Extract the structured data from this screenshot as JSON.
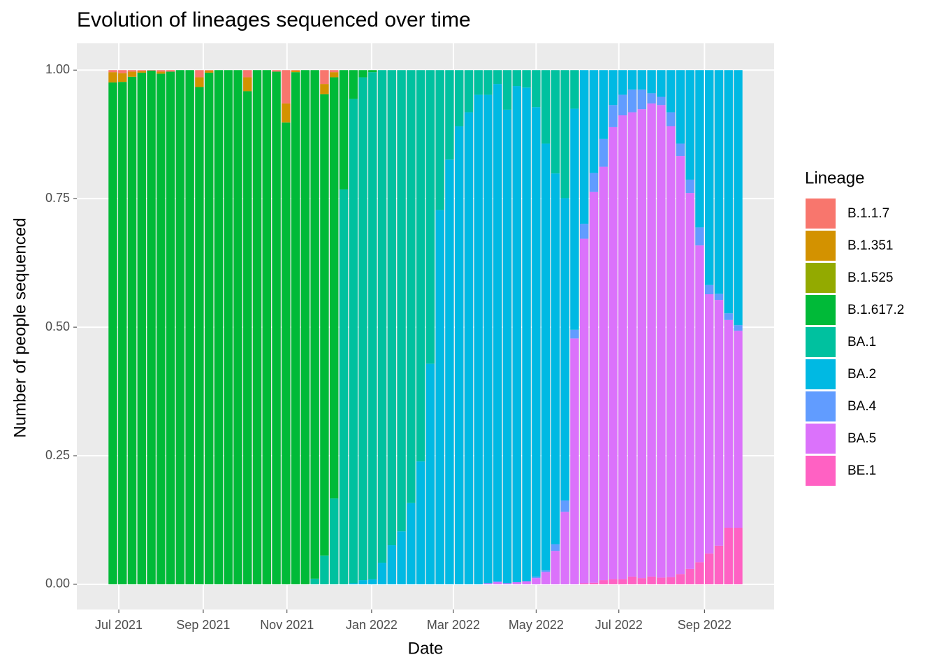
{
  "chart_data": {
    "type": "stacked_bar",
    "title": "Evolution of lineages sequenced over time",
    "x_label": "Date",
    "y_label": "Number of people sequenced",
    "legend_title": "Lineage",
    "legend_position": "right",
    "grid": true,
    "categories": [
      null,
      null,
      null,
      null,
      null,
      null,
      null,
      null,
      null,
      null,
      null,
      null,
      null,
      null,
      null,
      null,
      null,
      null,
      null,
      null,
      null,
      null,
      null,
      null,
      null,
      null,
      null,
      null,
      null,
      null,
      null,
      null,
      null,
      null,
      null,
      null,
      null,
      null,
      null,
      null,
      null,
      null,
      null,
      null,
      null,
      null,
      null,
      null,
      null,
      null,
      null,
      null,
      null,
      null,
      null,
      null,
      null,
      null,
      null,
      null,
      null,
      null,
      null,
      null,
      null,
      null
    ],
    "xlim": [
      -3.74,
      68.74
    ],
    "xticks": [
      {
        "value": 0.62,
        "label": "Jul 2021"
      },
      {
        "value": 9.4,
        "label": "Sep 2021"
      },
      {
        "value": 18.1,
        "label": "Nov 2021"
      },
      {
        "value": 26.9,
        "label": "Jan 2022"
      },
      {
        "value": 35.4,
        "label": "Mar 2022"
      },
      {
        "value": 44.0,
        "label": "May 2022"
      },
      {
        "value": 52.6,
        "label": "Jul 2022"
      },
      {
        "value": 61.5,
        "label": "Sep 2022"
      }
    ],
    "ylim": [
      -0.049,
      1.052
    ],
    "yticks": [
      {
        "value": 0,
        "label": "0.00"
      },
      {
        "value": 0.25,
        "label": "0.25"
      },
      {
        "value": 0.5,
        "label": "0.50"
      },
      {
        "value": 0.75,
        "label": "0.75"
      },
      {
        "value": 1,
        "label": "1.00"
      }
    ],
    "series": [
      {
        "name": "B.1.1.7",
        "color": "#F8766D",
        "values": [
          0.004,
          0.006,
          0.003,
          0.002,
          0.001,
          0.003,
          0.003,
          0,
          0,
          0.014,
          0.001,
          0,
          0,
          0,
          0.014,
          0,
          0,
          0.003,
          0.065,
          0.001,
          0,
          0,
          0.027,
          0.004,
          0,
          0,
          0,
          0,
          0,
          0,
          0,
          0,
          0,
          0,
          0,
          0,
          0,
          0,
          0,
          0,
          0,
          0,
          0,
          0,
          0,
          0,
          0,
          0,
          0,
          0,
          0,
          0,
          0,
          0,
          0,
          0,
          0,
          0,
          0,
          0,
          0,
          0,
          0,
          0,
          0,
          0
        ]
      },
      {
        "name": "B.1.351",
        "color": "#D39200",
        "values": [
          0.02,
          0.017,
          0.01,
          0.003,
          0,
          0.004,
          0,
          0,
          0,
          0.019,
          0.004,
          0,
          0,
          0,
          0.027,
          0,
          0,
          0,
          0.037,
          0.003,
          0,
          0,
          0.02,
          0.01,
          0,
          0,
          0,
          0,
          0,
          0,
          0,
          0,
          0,
          0,
          0,
          0,
          0,
          0,
          0,
          0,
          0,
          0,
          0,
          0,
          0,
          0,
          0,
          0,
          0,
          0,
          0,
          0,
          0,
          0,
          0,
          0,
          0,
          0,
          0,
          0,
          0,
          0,
          0,
          0,
          0,
          0
        ]
      },
      {
        "name": "B.1.525",
        "color": "#93AA00",
        "values": [
          0,
          0,
          0,
          0,
          0,
          0,
          0,
          0,
          0,
          0,
          0,
          0,
          0,
          0,
          0,
          0,
          0,
          0,
          0,
          0,
          0,
          0,
          0,
          0,
          0,
          0,
          0,
          0,
          0,
          0,
          0,
          0,
          0,
          0,
          0,
          0,
          0,
          0,
          0,
          0,
          0,
          0,
          0,
          0,
          0,
          0,
          0,
          0,
          0,
          0,
          0,
          0,
          0,
          0,
          0,
          0,
          0,
          0,
          0,
          0,
          0,
          0,
          0,
          0,
          0,
          0
        ]
      },
      {
        "name": "B.1.617.2",
        "color": "#00BA38",
        "values": [
          0.976,
          0.977,
          0.987,
          0.995,
          0.999,
          0.993,
          0.997,
          1,
          1,
          0.967,
          0.995,
          1,
          1,
          1,
          0.959,
          1,
          1,
          0.997,
          0.898,
          0.996,
          1,
          0.989,
          0.897,
          0.819,
          0.232,
          0.056,
          0.014,
          0.004,
          0,
          0,
          0,
          0,
          0,
          0,
          0,
          0,
          0,
          0,
          0,
          0,
          0,
          0,
          0,
          0,
          0,
          0,
          0,
          0,
          0,
          0,
          0,
          0,
          0,
          0,
          0,
          0,
          0,
          0,
          0,
          0,
          0,
          0,
          0,
          0,
          0,
          0
        ]
      },
      {
        "name": "BA.1",
        "color": "#00C19F",
        "values": [
          0,
          0,
          0,
          0,
          0,
          0,
          0,
          0,
          0,
          0,
          0,
          0,
          0,
          0,
          0,
          0,
          0,
          0,
          0,
          0,
          0,
          0.011,
          0.056,
          0.167,
          0.768,
          0.942,
          0.978,
          0.986,
          0.958,
          0.924,
          0.897,
          0.842,
          0.761,
          0.571,
          0.272,
          0.174,
          0.109,
          0.082,
          0.048,
          0.048,
          0.027,
          0.077,
          0.031,
          0.034,
          0.072,
          0.143,
          0.201,
          0.249,
          0.075,
          0,
          0,
          0,
          0,
          0,
          0,
          0,
          0,
          0,
          0,
          0,
          0,
          0,
          0,
          0,
          0,
          0
        ]
      },
      {
        "name": "BA.2",
        "color": "#00B9E3",
        "values": [
          0,
          0,
          0,
          0,
          0,
          0,
          0,
          0,
          0,
          0,
          0,
          0,
          0,
          0,
          0,
          0,
          0,
          0,
          0,
          0,
          0,
          0,
          0,
          0,
          0,
          0.002,
          0.008,
          0.01,
          0.042,
          0.076,
          0.103,
          0.158,
          0.239,
          0.429,
          0.728,
          0.826,
          0.891,
          0.918,
          0.952,
          0.95,
          0.967,
          0.921,
          0.965,
          0.96,
          0.913,
          0.83,
          0.721,
          0.588,
          0.43,
          0.299,
          0.2,
          0.134,
          0.068,
          0.048,
          0.038,
          0.038,
          0.045,
          0.052,
          0.082,
          0.143,
          0.213,
          0.306,
          0.418,
          0.435,
          0.473,
          0.496
        ]
      },
      {
        "name": "BA.4",
        "color": "#619CFF",
        "values": [
          0,
          0,
          0,
          0,
          0,
          0,
          0,
          0,
          0,
          0,
          0,
          0,
          0,
          0,
          0,
          0,
          0,
          0,
          0,
          0,
          0,
          0,
          0,
          0,
          0,
          0,
          0,
          0,
          0,
          0,
          0,
          0,
          0,
          0,
          0,
          0,
          0,
          0,
          0,
          0,
          0.002,
          0,
          0,
          0,
          0.003,
          0.003,
          0.013,
          0.022,
          0.017,
          0.029,
          0.037,
          0.054,
          0.043,
          0.04,
          0.044,
          0.038,
          0.02,
          0.016,
          0.027,
          0.024,
          0.026,
          0.035,
          0.018,
          0.012,
          0.013,
          0.011
        ]
      },
      {
        "name": "BA.5",
        "color": "#DB72FB",
        "values": [
          0,
          0,
          0,
          0,
          0,
          0,
          0,
          0,
          0,
          0,
          0,
          0,
          0,
          0,
          0,
          0,
          0,
          0,
          0,
          0,
          0,
          0,
          0,
          0,
          0,
          0,
          0,
          0,
          0,
          0,
          0,
          0,
          0,
          0,
          0,
          0,
          0,
          0,
          0,
          0.002,
          0.004,
          0.002,
          0.004,
          0.006,
          0.012,
          0.024,
          0.065,
          0.141,
          0.478,
          0.67,
          0.76,
          0.804,
          0.879,
          0.902,
          0.903,
          0.912,
          0.92,
          0.919,
          0.877,
          0.813,
          0.731,
          0.616,
          0.504,
          0.478,
          0.404,
          0.383
        ]
      },
      {
        "name": "BE.1",
        "color": "#FF61C3",
        "values": [
          0,
          0,
          0,
          0,
          0,
          0,
          0,
          0,
          0,
          0,
          0,
          0,
          0,
          0,
          0,
          0,
          0,
          0,
          0,
          0,
          0,
          0,
          0,
          0,
          0,
          0,
          0,
          0,
          0,
          0,
          0,
          0,
          0,
          0,
          0,
          0,
          0,
          0,
          0,
          0,
          0,
          0,
          0,
          0,
          0,
          0,
          0,
          0,
          0,
          0.002,
          0.003,
          0.008,
          0.01,
          0.01,
          0.015,
          0.012,
          0.015,
          0.013,
          0.014,
          0.02,
          0.03,
          0.043,
          0.06,
          0.075,
          0.11,
          0.11
        ]
      }
    ]
  }
}
